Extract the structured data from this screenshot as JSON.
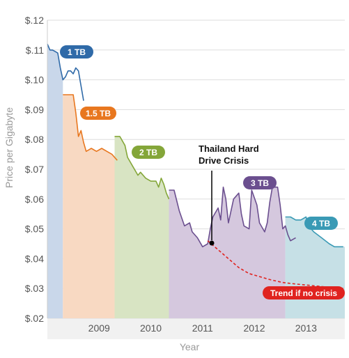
{
  "chart_data": {
    "type": "area",
    "ylabel": "Price per Gigabyte",
    "xlabel": "Year",
    "y_ticks": [
      "$.02",
      "$.03",
      "$.04",
      "$.05",
      "$.06",
      "$.07",
      "$.08",
      "$.09",
      "$.10",
      "$.11",
      "$.12"
    ],
    "ylim": [
      0.02,
      0.12
    ],
    "x_ticks": [
      "2009",
      "2010",
      "2011",
      "2012",
      "2013"
    ],
    "xlim": [
      2008.0,
      2013.75
    ],
    "grid": true,
    "series": [
      {
        "name": "1 TB",
        "color": "#2f6aa8",
        "fill": "#c9d7ea",
        "fill_range": [
          2008.0,
          2008.3
        ],
        "points": [
          [
            2008.0,
            0.112
          ],
          [
            2008.05,
            0.11
          ],
          [
            2008.1,
            0.11
          ],
          [
            2008.2,
            0.109
          ],
          [
            2008.25,
            0.104
          ],
          [
            2008.3,
            0.1
          ],
          [
            2008.35,
            0.101
          ],
          [
            2008.4,
            0.103
          ],
          [
            2008.45,
            0.103
          ],
          [
            2008.5,
            0.102
          ],
          [
            2008.55,
            0.104
          ],
          [
            2008.6,
            0.103
          ],
          [
            2008.65,
            0.098
          ],
          [
            2008.7,
            0.093
          ]
        ]
      },
      {
        "name": "1.5 TB",
        "color": "#e8771f",
        "fill": "#f8d9c2",
        "fill_range": [
          2008.3,
          2009.3
        ],
        "points": [
          [
            2008.3,
            0.095
          ],
          [
            2008.4,
            0.095
          ],
          [
            2008.5,
            0.095
          ],
          [
            2008.55,
            0.089
          ],
          [
            2008.6,
            0.081
          ],
          [
            2008.65,
            0.083
          ],
          [
            2008.7,
            0.079
          ],
          [
            2008.75,
            0.076
          ],
          [
            2008.85,
            0.077
          ],
          [
            2008.95,
            0.076
          ],
          [
            2009.05,
            0.077
          ],
          [
            2009.15,
            0.076
          ],
          [
            2009.25,
            0.075
          ],
          [
            2009.35,
            0.073
          ]
        ]
      },
      {
        "name": "2 TB",
        "color": "#84a639",
        "fill": "#d8e4c3",
        "fill_range": [
          2009.3,
          2010.35
        ],
        "points": [
          [
            2009.3,
            0.081
          ],
          [
            2009.4,
            0.081
          ],
          [
            2009.5,
            0.078
          ],
          [
            2009.55,
            0.074
          ],
          [
            2009.65,
            0.071
          ],
          [
            2009.75,
            0.068
          ],
          [
            2009.8,
            0.069
          ],
          [
            2009.9,
            0.067
          ],
          [
            2010.0,
            0.066
          ],
          [
            2010.1,
            0.066
          ],
          [
            2010.15,
            0.064
          ],
          [
            2010.2,
            0.067
          ],
          [
            2010.25,
            0.065
          ],
          [
            2010.3,
            0.062
          ],
          [
            2010.35,
            0.06
          ]
        ]
      },
      {
        "name": "3 TB",
        "color": "#6b4f8f",
        "fill": "#d5c8de",
        "fill_range": [
          2010.35,
          2012.6
        ],
        "points": [
          [
            2010.35,
            0.063
          ],
          [
            2010.45,
            0.063
          ],
          [
            2010.55,
            0.056
          ],
          [
            2010.65,
            0.051
          ],
          [
            2010.75,
            0.052
          ],
          [
            2010.8,
            0.049
          ],
          [
            2010.9,
            0.047
          ],
          [
            2011.0,
            0.044
          ],
          [
            2011.1,
            0.045
          ],
          [
            2011.15,
            0.05
          ],
          [
            2011.2,
            0.054
          ],
          [
            2011.3,
            0.057
          ],
          [
            2011.35,
            0.053
          ],
          [
            2011.4,
            0.064
          ],
          [
            2011.45,
            0.06
          ],
          [
            2011.5,
            0.052
          ],
          [
            2011.6,
            0.06
          ],
          [
            2011.7,
            0.062
          ],
          [
            2011.75,
            0.055
          ],
          [
            2011.8,
            0.051
          ],
          [
            2011.9,
            0.05
          ],
          [
            2011.95,
            0.063
          ],
          [
            2012.05,
            0.058
          ],
          [
            2012.1,
            0.052
          ],
          [
            2012.2,
            0.049
          ],
          [
            2012.25,
            0.052
          ],
          [
            2012.3,
            0.059
          ],
          [
            2012.35,
            0.064
          ],
          [
            2012.45,
            0.064
          ],
          [
            2012.5,
            0.058
          ],
          [
            2012.55,
            0.05
          ],
          [
            2012.6,
            0.051
          ],
          [
            2012.65,
            0.048
          ],
          [
            2012.7,
            0.046
          ],
          [
            2012.8,
            0.047
          ]
        ]
      },
      {
        "name": "4 TB",
        "color": "#3a9ab5",
        "fill": "#c6e0e6",
        "fill_range": [
          2012.6,
          2013.75
        ],
        "points": [
          [
            2012.6,
            0.054
          ],
          [
            2012.7,
            0.054
          ],
          [
            2012.8,
            0.053
          ],
          [
            2012.9,
            0.053
          ],
          [
            2013.0,
            0.054
          ],
          [
            2013.05,
            0.051
          ],
          [
            2013.15,
            0.049
          ],
          [
            2013.3,
            0.047
          ],
          [
            2013.45,
            0.045
          ],
          [
            2013.55,
            0.044
          ],
          [
            2013.6,
            0.044
          ],
          [
            2013.7,
            0.044
          ],
          [
            2013.72,
            0.044
          ]
        ]
      }
    ],
    "trend": {
      "name": "Trend if no crisis",
      "color": "#e0231f",
      "points": [
        [
          2011.1,
          0.046
        ],
        [
          2011.3,
          0.043
        ],
        [
          2011.5,
          0.04
        ],
        [
          2011.7,
          0.037
        ],
        [
          2011.9,
          0.035
        ],
        [
          2012.1,
          0.034
        ],
        [
          2012.3,
          0.033
        ],
        [
          2012.55,
          0.032
        ],
        [
          2012.8,
          0.0315
        ],
        [
          2013.1,
          0.031
        ],
        [
          2013.4,
          0.0305
        ],
        [
          2013.72,
          0.03
        ]
      ]
    },
    "annotation": {
      "line1": "Thailand Hard",
      "line2": "Drive Crisis",
      "at": [
        2011.0,
        0.044
      ]
    }
  }
}
